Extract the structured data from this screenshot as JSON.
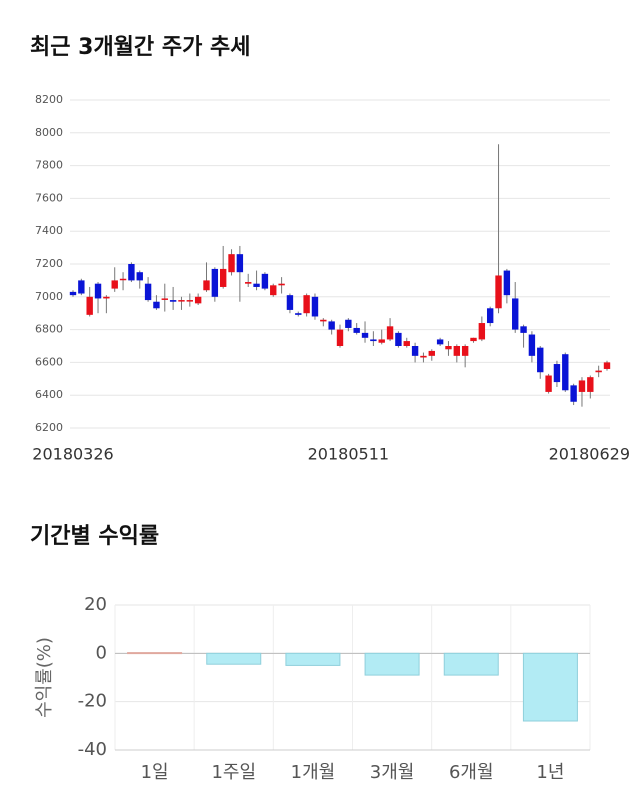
{
  "chart_data": [
    {
      "type": "candlestick",
      "title": "최근 3개월간 주가 추세",
      "categories": [
        "20180326",
        null,
        null,
        null,
        null,
        null,
        null,
        null,
        null,
        null,
        null,
        null,
        null,
        null,
        null,
        null,
        null,
        null,
        null,
        null,
        null,
        null,
        null,
        null,
        null,
        null,
        null,
        null,
        null,
        null,
        null,
        null,
        null,
        "20180511",
        null,
        null,
        null,
        null,
        null,
        null,
        null,
        null,
        null,
        null,
        null,
        null,
        null,
        null,
        null,
        null,
        null,
        null,
        null,
        null,
        null,
        null,
        null,
        null,
        null,
        null,
        null,
        null,
        null,
        null,
        "20180629"
      ],
      "open": [
        7030,
        7100,
        6890,
        7080,
        6990,
        7050,
        7110,
        7200,
        7150,
        7080,
        6970,
        6990,
        6980,
        6980,
        6980,
        6960,
        7040,
        7170,
        7060,
        7150,
        7260,
        7080,
        7080,
        7140,
        7010,
        7070,
        7010,
        6900,
        6900,
        7000,
        6850,
        6850,
        6700,
        6860,
        6810,
        6780,
        6740,
        6720,
        6740,
        6780,
        6700,
        6700,
        6630,
        6640,
        6740,
        6680,
        6640,
        6640,
        6730,
        6740,
        6930,
        6930,
        7160,
        6990,
        6820,
        6770,
        6690,
        6420,
        6590,
        6650,
        6460,
        6420,
        6420,
        6540,
        6560
      ],
      "high": [
        7040,
        7110,
        7060,
        7090,
        7010,
        7180,
        7150,
        7210,
        7160,
        7120,
        7010,
        7080,
        7060,
        7000,
        7020,
        7020,
        7210,
        7180,
        7310,
        7290,
        7310,
        7140,
        7160,
        7150,
        7080,
        7120,
        7020,
        6910,
        7020,
        7020,
        6870,
        6860,
        6830,
        6870,
        6840,
        6850,
        6790,
        6800,
        6870,
        6790,
        6750,
        6720,
        6660,
        6680,
        6750,
        6730,
        6710,
        6710,
        6750,
        6880,
        6940,
        7930,
        7170,
        7090,
        6830,
        6790,
        6700,
        6530,
        6610,
        6660,
        6470,
        6510,
        6520,
        6580,
        6610
      ],
      "low": [
        7000,
        7010,
        6880,
        6900,
        6900,
        7030,
        7040,
        7090,
        7050,
        6970,
        6920,
        6910,
        6920,
        6920,
        6940,
        6950,
        7030,
        6970,
        7050,
        7130,
        6970,
        7060,
        7040,
        7040,
        7000,
        7020,
        6900,
        6880,
        6880,
        6860,
        6820,
        6770,
        6690,
        6790,
        6770,
        6720,
        6700,
        6710,
        6730,
        6690,
        6690,
        6600,
        6600,
        6610,
        6700,
        6640,
        6600,
        6570,
        6720,
        6730,
        6820,
        6900,
        6960,
        6780,
        6690,
        6600,
        6500,
        6410,
        6450,
        6420,
        6340,
        6330,
        6380,
        6510,
        6550
      ],
      "close": [
        7010,
        7020,
        7000,
        6990,
        7000,
        7100,
        7110,
        7100,
        7100,
        6980,
        6930,
        6990,
        6970,
        6980,
        6980,
        7000,
        7100,
        7000,
        7170,
        7260,
        7150,
        7090,
        7060,
        7050,
        7070,
        7080,
        6920,
        6890,
        7010,
        6880,
        6860,
        6800,
        6800,
        6810,
        6780,
        6750,
        6730,
        6740,
        6820,
        6700,
        6730,
        6640,
        6640,
        6670,
        6710,
        6700,
        6700,
        6700,
        6750,
        6840,
        6840,
        7130,
        7010,
        6800,
        6780,
        6640,
        6540,
        6520,
        6480,
        6430,
        6360,
        6490,
        6510,
        6550,
        6600
      ],
      "up_color": "#e8101a",
      "down_color": "#0a14d6",
      "ylim": [
        6200,
        8200
      ],
      "yticks": [
        6200,
        6400,
        6600,
        6800,
        7000,
        7200,
        7400,
        7600,
        7800,
        8000,
        8200
      ],
      "grid": true
    },
    {
      "type": "bar",
      "title": "기간별 수익률",
      "ylabel": "수익률(%)",
      "categories": [
        "1일",
        "1주일",
        "1개월",
        "3개월",
        "6개월",
        "1년"
      ],
      "values": [
        0.3,
        -4.5,
        -5,
        -9,
        -9,
        -28
      ],
      "positive_color": "#f2c9c2",
      "negative_color": "#b2ebf4",
      "ylim": [
        -40,
        20
      ],
      "yticks": [
        20,
        0,
        -20,
        -40
      ],
      "grid": true
    }
  ]
}
